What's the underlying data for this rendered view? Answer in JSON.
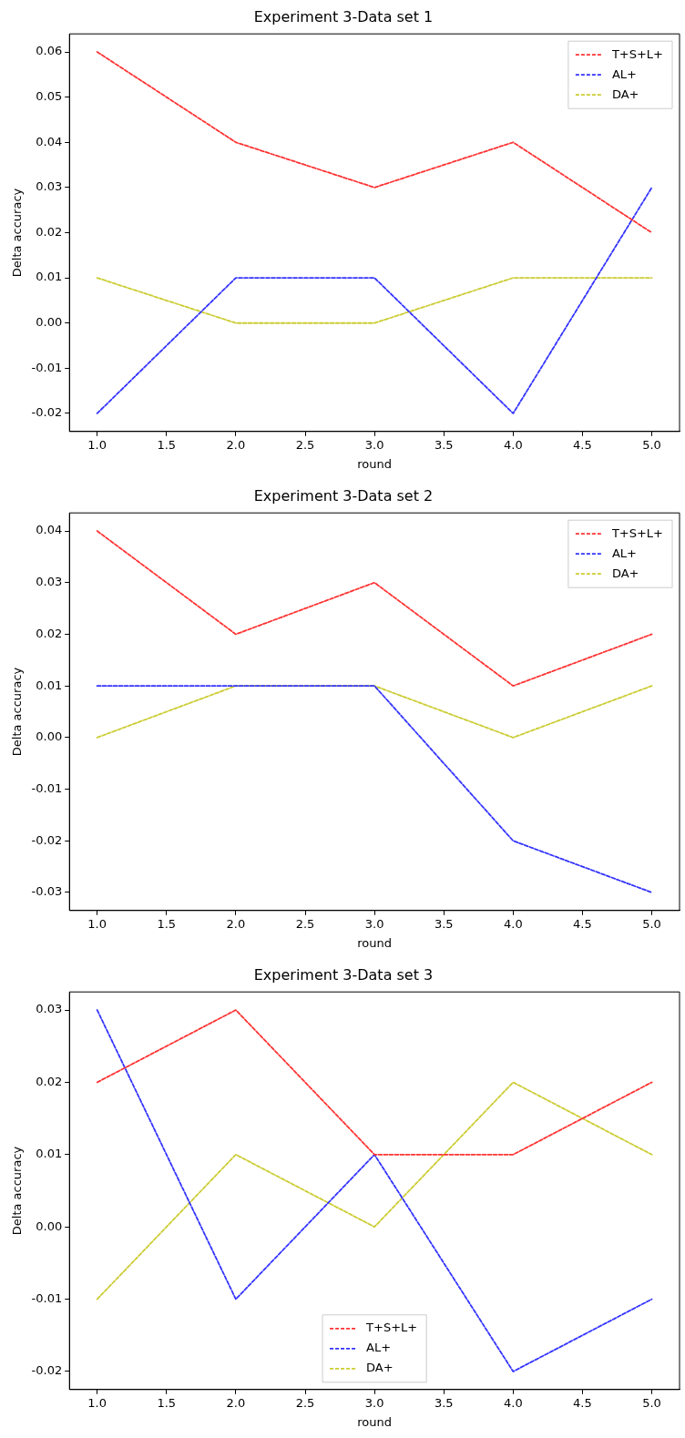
{
  "chart_data": [
    {
      "type": "line",
      "title": "Experiment 3-Data set 1",
      "xlabel": "round",
      "ylabel": "Delta accuracy",
      "x": [
        1,
        2,
        3,
        4,
        5
      ],
      "xlim": [
        0.8,
        5.2
      ],
      "xticks": [
        {
          "value": 1,
          "label": "1.0"
        },
        {
          "value": 1.5,
          "label": "1.5"
        },
        {
          "value": 2,
          "label": "2.0"
        },
        {
          "value": 2.5,
          "label": "2.5"
        },
        {
          "value": 3,
          "label": "3.0"
        },
        {
          "value": 3.5,
          "label": "3.5"
        },
        {
          "value": 4,
          "label": "4.0"
        },
        {
          "value": 4.5,
          "label": "4.5"
        },
        {
          "value": 5,
          "label": "5.0"
        }
      ],
      "ylim": [
        -0.024,
        0.064
      ],
      "yticks": [
        {
          "value": -0.02,
          "label": "-0.02"
        },
        {
          "value": -0.01,
          "label": "-0.01"
        },
        {
          "value": 0,
          "label": "0.00"
        },
        {
          "value": 0.01,
          "label": "0.01"
        },
        {
          "value": 0.02,
          "label": "0.02"
        },
        {
          "value": 0.03,
          "label": "0.03"
        },
        {
          "value": 0.04,
          "label": "0.04"
        },
        {
          "value": 0.05,
          "label": "0.05"
        },
        {
          "value": 0.06,
          "label": "0.06"
        }
      ],
      "grid": false,
      "legend": "top right",
      "marker": "none",
      "line_style": "dashed",
      "series": [
        {
          "name": "T+S+L+",
          "color": "#ff3333",
          "values": [
            0.06,
            0.04,
            0.03,
            0.04,
            0.02
          ]
        },
        {
          "name": "AL+",
          "color": "#3333ff",
          "values": [
            -0.02,
            0.01,
            0.01,
            -0.02,
            0.03
          ]
        },
        {
          "name": "DA+",
          "color": "#cccc33",
          "values": [
            0.01,
            0,
            0,
            0.01,
            0.01
          ]
        }
      ]
    },
    {
      "type": "line",
      "title": "Experiment 3-Data set 2",
      "xlabel": "round",
      "ylabel": "Delta accuracy",
      "x": [
        1,
        2,
        3,
        4,
        5
      ],
      "xlim": [
        0.8,
        5.2
      ],
      "xticks": [
        {
          "value": 1,
          "label": "1.0"
        },
        {
          "value": 1.5,
          "label": "1.5"
        },
        {
          "value": 2,
          "label": "2.0"
        },
        {
          "value": 2.5,
          "label": "2.5"
        },
        {
          "value": 3,
          "label": "3.0"
        },
        {
          "value": 3.5,
          "label": "3.5"
        },
        {
          "value": 4,
          "label": "4.0"
        },
        {
          "value": 4.5,
          "label": "4.5"
        },
        {
          "value": 5,
          "label": "5.0"
        }
      ],
      "ylim": [
        -0.0335,
        0.0435
      ],
      "yticks": [
        {
          "value": -0.03,
          "label": "-0.03"
        },
        {
          "value": -0.02,
          "label": "-0.02"
        },
        {
          "value": -0.01,
          "label": "-0.01"
        },
        {
          "value": 0,
          "label": "0.00"
        },
        {
          "value": 0.01,
          "label": "0.01"
        },
        {
          "value": 0.02,
          "label": "0.02"
        },
        {
          "value": 0.03,
          "label": "0.03"
        },
        {
          "value": 0.04,
          "label": "0.04"
        }
      ],
      "grid": false,
      "legend": "top right",
      "marker": "none",
      "line_style": "dashed",
      "series": [
        {
          "name": "T+S+L+",
          "color": "#ff3333",
          "values": [
            0.04,
            0.02,
            0.03,
            0.01,
            0.02
          ]
        },
        {
          "name": "AL+",
          "color": "#3333ff",
          "values": [
            0.01,
            0.01,
            0.01,
            -0.02,
            -0.03
          ]
        },
        {
          "name": "DA+",
          "color": "#cccc33",
          "values": [
            0,
            0.01,
            0.01,
            0,
            0.01
          ]
        }
      ]
    },
    {
      "type": "line",
      "title": "Experiment 3-Data set 3",
      "xlabel": "round",
      "ylabel": "Delta accuracy",
      "x": [
        1,
        2,
        3,
        4,
        5
      ],
      "xlim": [
        0.8,
        5.2
      ],
      "xticks": [
        {
          "value": 1,
          "label": "1.0"
        },
        {
          "value": 1.5,
          "label": "1.5"
        },
        {
          "value": 2,
          "label": "2.0"
        },
        {
          "value": 2.5,
          "label": "2.5"
        },
        {
          "value": 3,
          "label": "3.0"
        },
        {
          "value": 3.5,
          "label": "3.5"
        },
        {
          "value": 4,
          "label": "4.0"
        },
        {
          "value": 4.5,
          "label": "4.5"
        },
        {
          "value": 5,
          "label": "5.0"
        }
      ],
      "ylim": [
        -0.0225,
        0.0325
      ],
      "yticks": [
        {
          "value": -0.02,
          "label": "-0.02"
        },
        {
          "value": -0.01,
          "label": "-0.01"
        },
        {
          "value": 0,
          "label": "0.00"
        },
        {
          "value": 0.01,
          "label": "0.01"
        },
        {
          "value": 0.02,
          "label": "0.02"
        },
        {
          "value": 0.03,
          "label": "0.03"
        }
      ],
      "grid": false,
      "legend": "bottom",
      "marker": "none",
      "line_style": "dashed",
      "series": [
        {
          "name": "T+S+L+",
          "color": "#ff3333",
          "values": [
            0.02,
            0.03,
            0.01,
            0.01,
            0.02
          ]
        },
        {
          "name": "AL+",
          "color": "#3333ff",
          "values": [
            0.03,
            -0.01,
            0.01,
            -0.02,
            -0.01
          ]
        },
        {
          "name": "DA+",
          "color": "#cccc33",
          "values": [
            -0.01,
            0.01,
            0,
            0.02,
            0.01
          ]
        }
      ]
    }
  ]
}
